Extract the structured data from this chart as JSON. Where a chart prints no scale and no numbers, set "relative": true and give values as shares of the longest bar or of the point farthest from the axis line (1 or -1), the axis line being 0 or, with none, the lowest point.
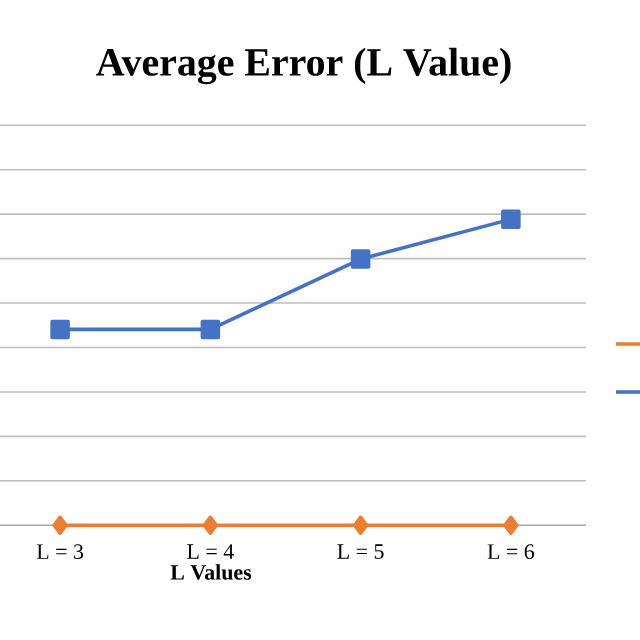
{
  "chart_data": {
    "type": "line",
    "title": "Average Error (L Value)",
    "xlabel": "L Values",
    "categories": [
      "L = 3",
      "L = 4",
      "L = 5",
      "L = 6"
    ],
    "relative": true,
    "grid": "y",
    "series": [
      {
        "color": "#ed7d31",
        "marker": "diamond",
        "values": [
          0,
          0,
          0,
          0
        ]
      },
      {
        "color": "#4472c4",
        "marker": "square",
        "values": [
          0.64,
          0.64,
          0.87,
          1
        ]
      }
    ]
  }
}
